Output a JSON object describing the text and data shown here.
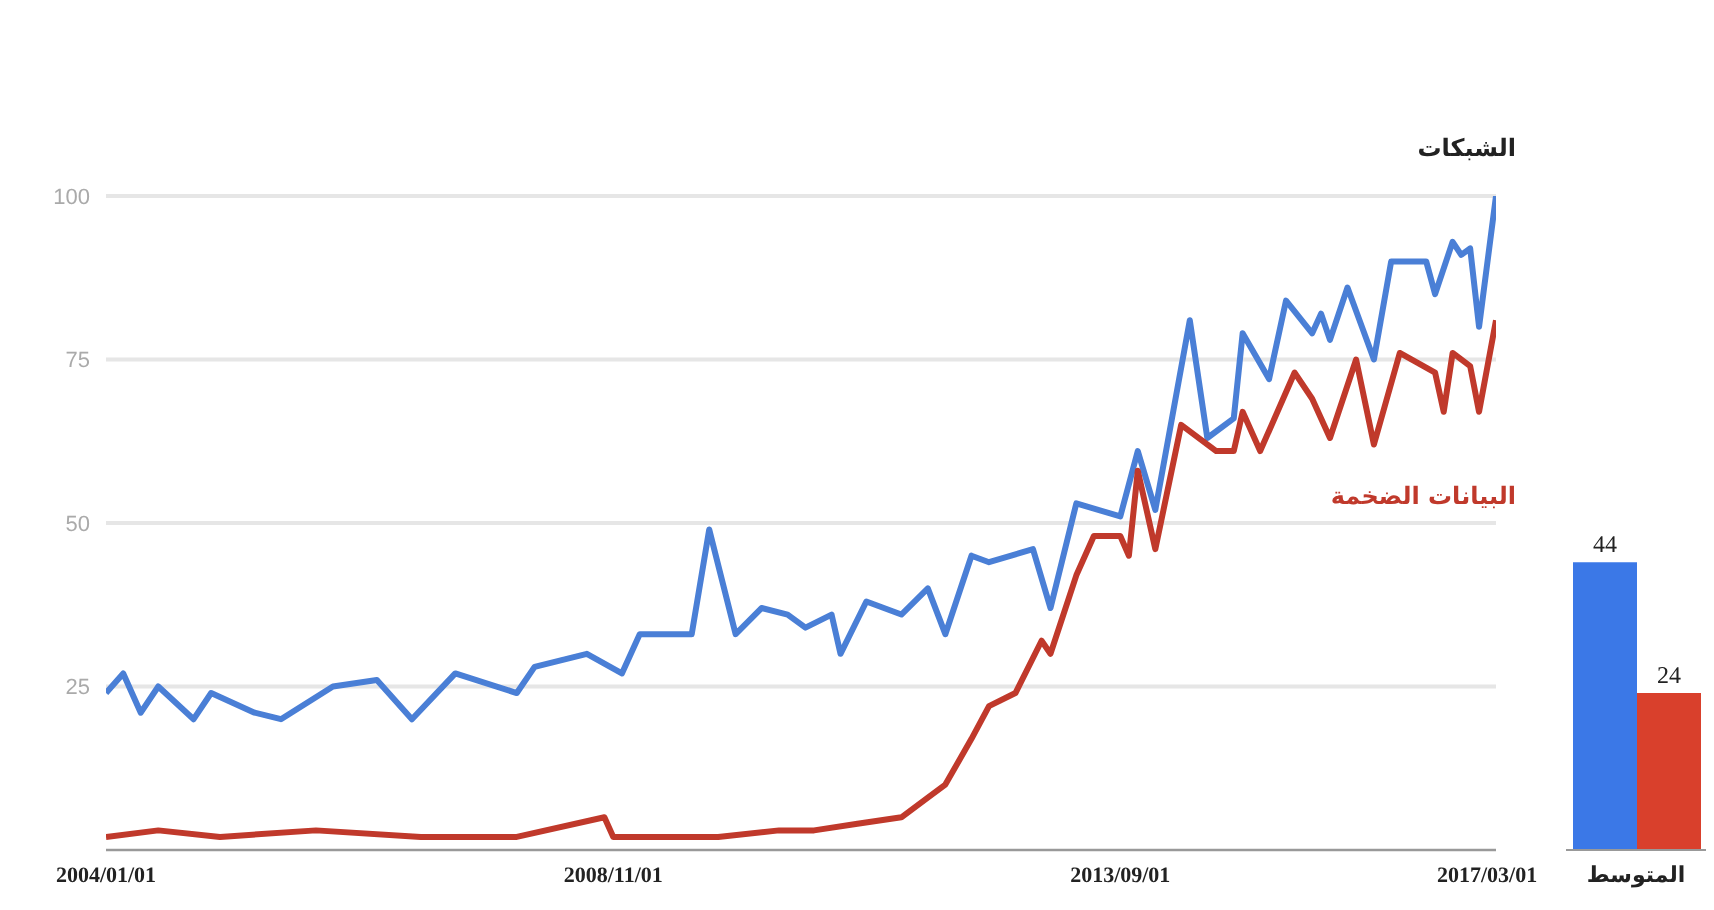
{
  "chart_data": [
    {
      "type": "line",
      "grid": "y",
      "legend": false,
      "ylim": [
        0,
        100
      ],
      "yticks": [
        25,
        50,
        75,
        100
      ],
      "xlim": [
        "2004-01",
        "2017-04"
      ],
      "xticks": [
        {
          "value": "2004-01",
          "label": "2004/01/01"
        },
        {
          "value": "2008-11",
          "label": "2008/11/01"
        },
        {
          "value": "2013-09",
          "label": "2013/09/01"
        },
        {
          "value": "2017-03",
          "label": "2017/03/01"
        }
      ],
      "series": [
        {
          "name": "الشبكات",
          "color": "#4a7fd6",
          "x": [
            "2004-01",
            "2004-03",
            "2004-05",
            "2004-07",
            "2004-11",
            "2005-01",
            "2005-06",
            "2005-09",
            "2006-03",
            "2006-08",
            "2006-12",
            "2007-05",
            "2007-12",
            "2008-02",
            "2008-08",
            "2008-12",
            "2009-02",
            "2009-08",
            "2009-10",
            "2010-01",
            "2010-04",
            "2010-07",
            "2010-09",
            "2010-12",
            "2011-01",
            "2011-04",
            "2011-08",
            "2011-11",
            "2012-01",
            "2012-04",
            "2012-06",
            "2012-11",
            "2013-01",
            "2013-04",
            "2013-09",
            "2013-11",
            "2014-01",
            "2014-05",
            "2014-07",
            "2014-10",
            "2014-11",
            "2015-02",
            "2015-04",
            "2015-07",
            "2015-08",
            "2015-09",
            "2015-11",
            "2016-02",
            "2016-04",
            "2016-08",
            "2016-09",
            "2016-11",
            "2016-12",
            "2017-01",
            "2017-02",
            "2017-04"
          ],
          "values": [
            24,
            27,
            21,
            25,
            20,
            24,
            21,
            20,
            25,
            26,
            20,
            27,
            24,
            28,
            30,
            27,
            33,
            33,
            49,
            33,
            37,
            36,
            34,
            36,
            30,
            38,
            36,
            40,
            33,
            45,
            44,
            46,
            37,
            53,
            51,
            61,
            52,
            81,
            63,
            66,
            79,
            72,
            84,
            79,
            82,
            78,
            86,
            75,
            90,
            90,
            85,
            93,
            91,
            92,
            80,
            100
          ]
        },
        {
          "name": "البيانات الضخمة",
          "color": "#c0392b",
          "x": [
            "2004-01",
            "2004-07",
            "2005-02",
            "2006-01",
            "2007-01",
            "2007-12",
            "2008-10",
            "2008-11",
            "2009-11",
            "2010-06",
            "2010-10",
            "2011-03",
            "2011-08",
            "2011-11",
            "2012-01",
            "2012-04",
            "2012-06",
            "2012-09",
            "2012-12",
            "2013-01",
            "2013-04",
            "2013-06",
            "2013-09",
            "2013-10",
            "2013-11",
            "2014-01",
            "2014-04",
            "2014-08",
            "2014-10",
            "2014-11",
            "2015-01",
            "2015-05",
            "2015-07",
            "2015-09",
            "2015-12",
            "2016-02",
            "2016-05",
            "2016-09",
            "2016-10",
            "2016-11",
            "2017-01",
            "2017-02",
            "2017-04"
          ],
          "values": [
            2,
            3,
            2,
            3,
            2,
            2,
            5,
            2,
            2,
            3,
            3,
            4,
            5,
            8,
            10,
            17,
            22,
            24,
            32,
            30,
            42,
            48,
            48,
            45,
            58,
            46,
            65,
            61,
            61,
            67,
            61,
            73,
            69,
            63,
            75,
            62,
            76,
            73,
            67,
            76,
            74,
            67,
            81
          ]
        }
      ]
    },
    {
      "type": "bar",
      "categories": [
        "المتوسط"
      ],
      "ylim": [
        0,
        100
      ],
      "tick_labels": "x",
      "data_labels": true,
      "legend": false,
      "series": [
        {
          "color": "#3b78e7",
          "values": [
            44
          ]
        },
        {
          "color": "#d9402c",
          "values": [
            24
          ]
        }
      ]
    }
  ]
}
